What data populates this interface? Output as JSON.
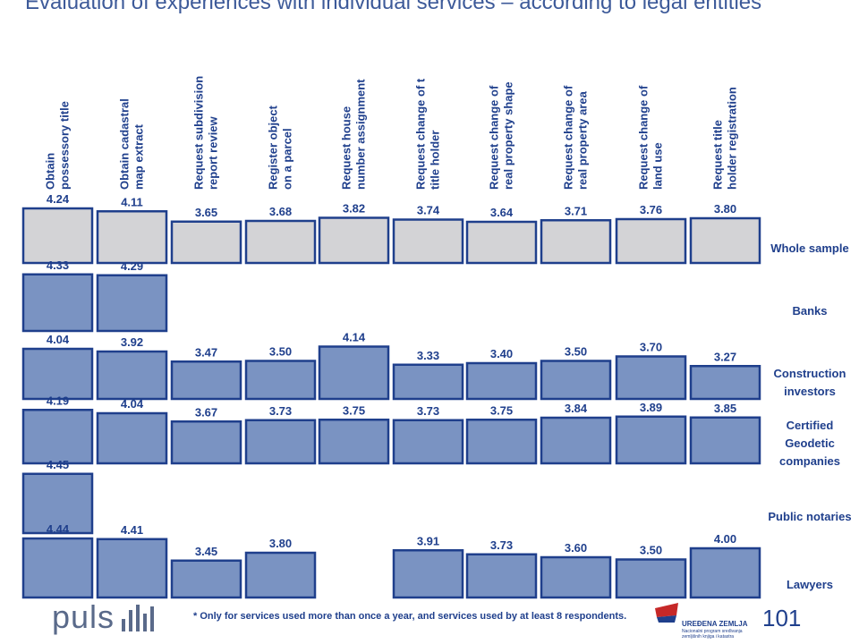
{
  "title": "Evaluation of experiences with individual services – according to legal entities",
  "footnote": "* Only for services used more than once a year, and services used by at least 8 respondents.",
  "brand": "puls",
  "page_number": "101",
  "agency": {
    "name": "UREĐENA ZEMLJA",
    "subtitle": "Nacionalni program sređivanja zemljišnih knjiga i katastra"
  },
  "colors": {
    "whole_sample": "#d3d3d6",
    "group": "#7a93c2",
    "border": "#1f3f8c",
    "label": "#1f3f8c"
  },
  "chart_data": {
    "type": "table",
    "categories": [
      [
        "Obtain",
        "possessory title"
      ],
      [
        "Obtain cadastral",
        "map extract"
      ],
      [
        "Request subdivision",
        "report review"
      ],
      [
        "Register object",
        "on a parcel"
      ],
      [
        "Request house",
        "number assignment"
      ],
      [
        "Request change of t",
        "title holder"
      ],
      [
        "Request change of",
        "real property shape"
      ],
      [
        "Request change of",
        "real property area"
      ],
      [
        "Request change of",
        "land use"
      ],
      [
        "Request title",
        "holder registration"
      ]
    ],
    "series": [
      {
        "name": [
          "Whole sample"
        ],
        "values": [
          4.24,
          4.11,
          3.65,
          3.68,
          3.82,
          3.74,
          3.64,
          3.71,
          3.76,
          3.8
        ]
      },
      {
        "name": [
          "Banks"
        ],
        "values": [
          4.33,
          4.29,
          null,
          null,
          null,
          null,
          null,
          null,
          null,
          null
        ]
      },
      {
        "name": [
          "Construction",
          "investors"
        ],
        "values": [
          4.04,
          3.92,
          3.47,
          3.5,
          4.14,
          3.33,
          3.4,
          3.5,
          3.7,
          3.27
        ]
      },
      {
        "name": [
          "Certified",
          "Geodetic",
          "companies"
        ],
        "values": [
          4.19,
          4.04,
          3.67,
          3.73,
          3.75,
          3.73,
          3.75,
          3.84,
          3.89,
          3.85
        ]
      },
      {
        "name": [
          "Public notaries"
        ],
        "values": [
          4.45,
          null,
          null,
          null,
          null,
          null,
          null,
          null,
          null,
          null
        ]
      },
      {
        "name": [
          "Lawyers"
        ],
        "values": [
          4.44,
          4.41,
          3.45,
          3.8,
          null,
          3.91,
          3.73,
          3.6,
          3.5,
          4.0
        ]
      }
    ],
    "value_format": "2 decimals"
  }
}
